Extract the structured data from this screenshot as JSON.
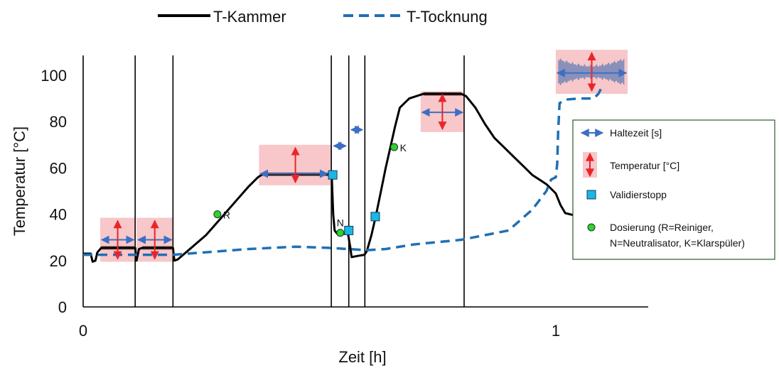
{
  "chart_data": {
    "type": "line",
    "xlabel": "Zeit [h]",
    "ylabel": "Temperatur [°C]",
    "xlim": [
      0,
      1.2
    ],
    "ylim": [
      0,
      110
    ],
    "x_ticks": [
      {
        "value": 0,
        "label": "0"
      },
      {
        "value": 1,
        "label": "1"
      }
    ],
    "y_ticks": [
      {
        "value": 0,
        "label": "0"
      },
      {
        "value": 20,
        "label": "20"
      },
      {
        "value": 40,
        "label": "40"
      },
      {
        "value": 60,
        "label": "60"
      },
      {
        "value": 80,
        "label": "80"
      },
      {
        "value": 100,
        "label": "100"
      }
    ],
    "series": [
      {
        "name": "T-Kammer",
        "color": "#000000",
        "style": "solid",
        "points": [
          [
            0.0,
            23
          ],
          [
            0.016,
            23
          ],
          [
            0.02,
            19.5
          ],
          [
            0.026,
            20
          ],
          [
            0.03,
            23.5
          ],
          [
            0.038,
            25.5
          ],
          [
            0.11,
            25.5
          ],
          [
            0.113,
            20
          ],
          [
            0.118,
            25
          ],
          [
            0.125,
            25.5
          ],
          [
            0.19,
            25.5
          ],
          [
            0.193,
            20
          ],
          [
            0.2,
            20.5
          ],
          [
            0.22,
            24
          ],
          [
            0.26,
            31
          ],
          [
            0.29,
            38
          ],
          [
            0.32,
            45
          ],
          [
            0.35,
            52
          ],
          [
            0.37,
            56
          ],
          [
            0.38,
            57.3
          ],
          [
            0.52,
            57.3
          ],
          [
            0.526,
            56
          ],
          [
            0.529,
            40
          ],
          [
            0.532,
            33
          ],
          [
            0.54,
            31
          ],
          [
            0.55,
            31.5
          ],
          [
            0.56,
            32
          ],
          [
            0.565,
            26
          ],
          [
            0.568,
            21.5
          ],
          [
            0.58,
            22
          ],
          [
            0.595,
            22.5
          ],
          [
            0.6,
            24
          ],
          [
            0.61,
            31
          ],
          [
            0.62,
            40
          ],
          [
            0.63,
            50
          ],
          [
            0.64,
            60
          ],
          [
            0.65,
            69
          ],
          [
            0.66,
            78
          ],
          [
            0.67,
            86
          ],
          [
            0.69,
            90
          ],
          [
            0.72,
            92
          ],
          [
            0.76,
            92
          ],
          [
            0.8,
            92
          ],
          [
            0.81,
            91
          ],
          [
            0.83,
            86
          ],
          [
            0.85,
            79
          ],
          [
            0.87,
            73
          ],
          [
            0.89,
            69
          ],
          [
            0.91,
            65
          ],
          [
            0.93,
            61
          ],
          [
            0.95,
            57
          ],
          [
            0.98,
            53
          ],
          [
            0.99,
            51
          ],
          [
            1.0,
            49
          ],
          [
            1.01,
            44
          ],
          [
            1.02,
            40.5
          ],
          [
            1.04,
            39.5
          ]
        ]
      },
      {
        "name": "T-Tocknung",
        "color": "#1f6fb5",
        "style": "dashed",
        "points": [
          [
            0.0,
            22.5
          ],
          [
            0.19,
            22.5
          ],
          [
            0.35,
            25
          ],
          [
            0.45,
            26
          ],
          [
            0.52,
            25.5
          ],
          [
            0.6,
            24.5
          ],
          [
            0.64,
            25
          ],
          [
            0.7,
            27
          ],
          [
            0.8,
            29
          ],
          [
            0.9,
            33
          ],
          [
            0.95,
            42
          ],
          [
            0.98,
            50
          ],
          [
            0.99,
            55
          ],
          [
            1.0,
            56
          ],
          [
            1.003,
            62
          ],
          [
            1.005,
            76
          ],
          [
            1.008,
            88
          ],
          [
            1.02,
            89.5
          ],
          [
            1.05,
            90
          ],
          [
            1.08,
            90
          ],
          [
            1.09,
            92
          ],
          [
            1.1,
            96
          ]
        ]
      }
    ],
    "noise_band": {
      "x": [
        1.005,
        1.145
      ],
      "y": [
        96,
        107
      ]
    },
    "vertical_lines": [
      0.0,
      0.11,
      0.19,
      0.525,
      0.562,
      0.596,
      0.806
    ],
    "hold_arrows": [
      {
        "x": [
          0.036,
          0.11
        ],
        "y": 29
      },
      {
        "x": [
          0.113,
          0.19
        ],
        "y": 29
      },
      {
        "x": [
          0.372,
          0.52
        ],
        "y": 57.5
      },
      {
        "x": [
          0.527,
          0.559
        ],
        "y": 69.5
      },
      {
        "x": [
          0.564,
          0.594
        ],
        "y": 76.5
      },
      {
        "x": [
          0.714,
          0.806
        ],
        "y": 84
      },
      {
        "x": [
          1.0,
          1.152
        ],
        "y": 101
      }
    ],
    "temp_boxes": [
      {
        "x": [
          0.036,
          0.11
        ],
        "y": [
          19.5,
          38.5
        ]
      },
      {
        "x": [
          0.113,
          0.19
        ],
        "y": [
          19.5,
          38.5
        ]
      },
      {
        "x": [
          0.372,
          0.526
        ],
        "y": [
          52.5,
          70
        ]
      },
      {
        "x": [
          0.714,
          0.806
        ],
        "y": [
          75.5,
          93
        ]
      },
      {
        "x": [
          1.0,
          1.152
        ],
        "y": [
          92,
          111
        ]
      }
    ],
    "validierstopp": [
      {
        "x": 0.528,
        "y": 57
      },
      {
        "x": 0.562,
        "y": 33
      },
      {
        "x": 0.618,
        "y": 39
      }
    ],
    "dosierung": [
      {
        "x": 0.284,
        "y": 40,
        "label": "R"
      },
      {
        "x": 0.544,
        "y": 32,
        "label": "N"
      },
      {
        "x": 0.658,
        "y": 69,
        "label": "K"
      }
    ],
    "top_legend": [
      {
        "name": "T-Kammer",
        "style": "solid"
      },
      {
        "name": "T-Tocknung",
        "style": "dashed"
      }
    ],
    "side_legend": {
      "haltezeit": "Haltezeit [s]",
      "temperatur": "Temperatur [°C]",
      "validierstopp": "Validierstopp",
      "dosierung_line1": "Dosierung (R=Reiniger,",
      "dosierung_line2": "N=Neutralisator, K=Klarspüler)"
    },
    "colors": {
      "kammer": "#000000",
      "tocknung": "#1f6fb5",
      "arrow_blue": "#3b6fc4",
      "arrow_red": "#e8262a",
      "box_pink": "#f7c7c9",
      "hold_plateau": "#8a5a5a",
      "validier": "#19b7e6",
      "dosierung": "#2fd22f",
      "legend_border": "#2b5a2b",
      "noise": "#7c89b8"
    }
  }
}
